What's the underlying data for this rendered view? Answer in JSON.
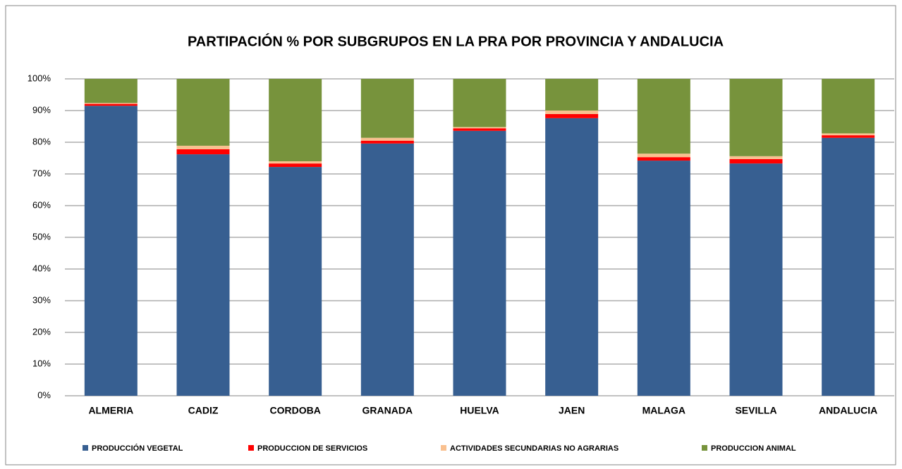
{
  "chart_data": {
    "type": "stacked_bar",
    "title": "PARTIPACIÓN  % POR SUBGRUPOS  EN  LA PRA POR PROVINCIA Y ANDALUCIA",
    "categories": [
      "ALMERIA",
      "CADIZ",
      "CORDOBA",
      "GRANADA",
      "HUELVA",
      "JAEN",
      "MALAGA",
      "SEVILLA",
      "ANDALUCIA"
    ],
    "series": [
      {
        "name": "PRODUCCIÓN VEGETAL",
        "color": "#375f91",
        "values": [
          91.5,
          76.2,
          72.2,
          79.6,
          83.6,
          87.6,
          74.2,
          73.3,
          81.4
        ]
      },
      {
        "name": "PRODUCCION DE SERVICIOS",
        "color": "#ff0000",
        "values": [
          0.6,
          1.6,
          1.1,
          0.9,
          0.8,
          1.3,
          1.1,
          1.4,
          0.8
        ]
      },
      {
        "name": "ACTIVIDADES SECUNDARIAS NO AGRARIAS",
        "color": "#f9c08f",
        "values": [
          0.3,
          1.1,
          0.7,
          0.9,
          0.4,
          1.1,
          1.1,
          0.9,
          0.6
        ]
      },
      {
        "name": "PRODUCCION ANIMAL",
        "color": "#77933c",
        "values": [
          7.6,
          21.1,
          26.0,
          18.6,
          15.2,
          10.0,
          23.6,
          24.4,
          17.2
        ]
      }
    ],
    "ylim": [
      0,
      100
    ],
    "yticks": [
      {
        "value": 0,
        "label": "0%"
      },
      {
        "value": 10,
        "label": "10%"
      },
      {
        "value": 20,
        "label": "20%"
      },
      {
        "value": 30,
        "label": "30%"
      },
      {
        "value": 40,
        "label": "40%"
      },
      {
        "value": 50,
        "label": "50%"
      },
      {
        "value": 60,
        "label": "60%"
      },
      {
        "value": 70,
        "label": "70%"
      },
      {
        "value": 80,
        "label": "80%"
      },
      {
        "value": 90,
        "label": "90%"
      },
      {
        "value": 100,
        "label": "100%"
      }
    ],
    "grid": true,
    "legend": "bottom"
  }
}
